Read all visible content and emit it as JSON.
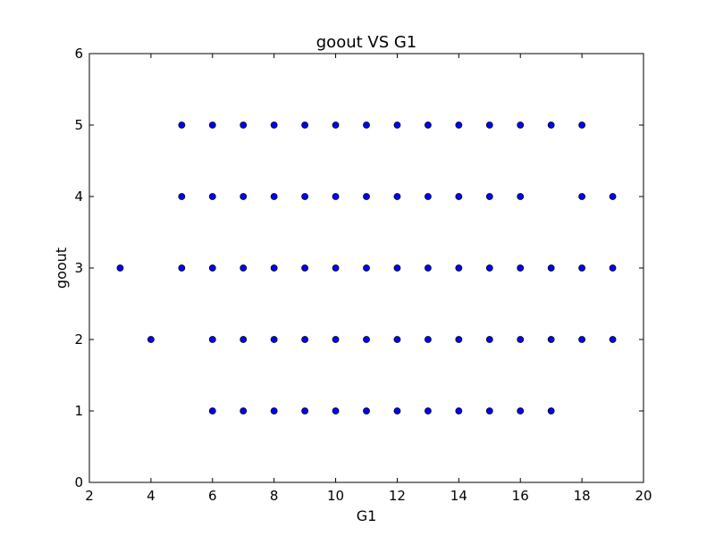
{
  "chart_data": {
    "type": "scatter",
    "title": "goout VS G1",
    "xlabel": "G1",
    "ylabel": "goout",
    "xlim": [
      2,
      20
    ],
    "ylim": [
      0,
      6
    ],
    "xticks": [
      2,
      4,
      6,
      8,
      10,
      12,
      14,
      16,
      18,
      20
    ],
    "yticks": [
      0,
      1,
      2,
      3,
      4,
      5,
      6
    ],
    "grid": false,
    "marker_color": "#0000ff",
    "marker_edge_color": "#000000",
    "points": [
      [
        5,
        5
      ],
      [
        6,
        5
      ],
      [
        7,
        5
      ],
      [
        8,
        5
      ],
      [
        9,
        5
      ],
      [
        10,
        5
      ],
      [
        11,
        5
      ],
      [
        12,
        5
      ],
      [
        13,
        5
      ],
      [
        14,
        5
      ],
      [
        15,
        5
      ],
      [
        16,
        5
      ],
      [
        17,
        5
      ],
      [
        18,
        5
      ],
      [
        5,
        4
      ],
      [
        6,
        4
      ],
      [
        7,
        4
      ],
      [
        8,
        4
      ],
      [
        9,
        4
      ],
      [
        10,
        4
      ],
      [
        11,
        4
      ],
      [
        12,
        4
      ],
      [
        13,
        4
      ],
      [
        14,
        4
      ],
      [
        15,
        4
      ],
      [
        16,
        4
      ],
      [
        18,
        4
      ],
      [
        19,
        4
      ],
      [
        3,
        3
      ],
      [
        5,
        3
      ],
      [
        6,
        3
      ],
      [
        7,
        3
      ],
      [
        8,
        3
      ],
      [
        9,
        3
      ],
      [
        10,
        3
      ],
      [
        11,
        3
      ],
      [
        12,
        3
      ],
      [
        13,
        3
      ],
      [
        14,
        3
      ],
      [
        15,
        3
      ],
      [
        16,
        3
      ],
      [
        17,
        3
      ],
      [
        18,
        3
      ],
      [
        19,
        3
      ],
      [
        4,
        2
      ],
      [
        6,
        2
      ],
      [
        7,
        2
      ],
      [
        8,
        2
      ],
      [
        9,
        2
      ],
      [
        10,
        2
      ],
      [
        11,
        2
      ],
      [
        12,
        2
      ],
      [
        13,
        2
      ],
      [
        14,
        2
      ],
      [
        15,
        2
      ],
      [
        16,
        2
      ],
      [
        17,
        2
      ],
      [
        18,
        2
      ],
      [
        19,
        2
      ],
      [
        6,
        1
      ],
      [
        7,
        1
      ],
      [
        8,
        1
      ],
      [
        9,
        1
      ],
      [
        10,
        1
      ],
      [
        11,
        1
      ],
      [
        12,
        1
      ],
      [
        13,
        1
      ],
      [
        14,
        1
      ],
      [
        15,
        1
      ],
      [
        16,
        1
      ],
      [
        17,
        1
      ]
    ]
  }
}
